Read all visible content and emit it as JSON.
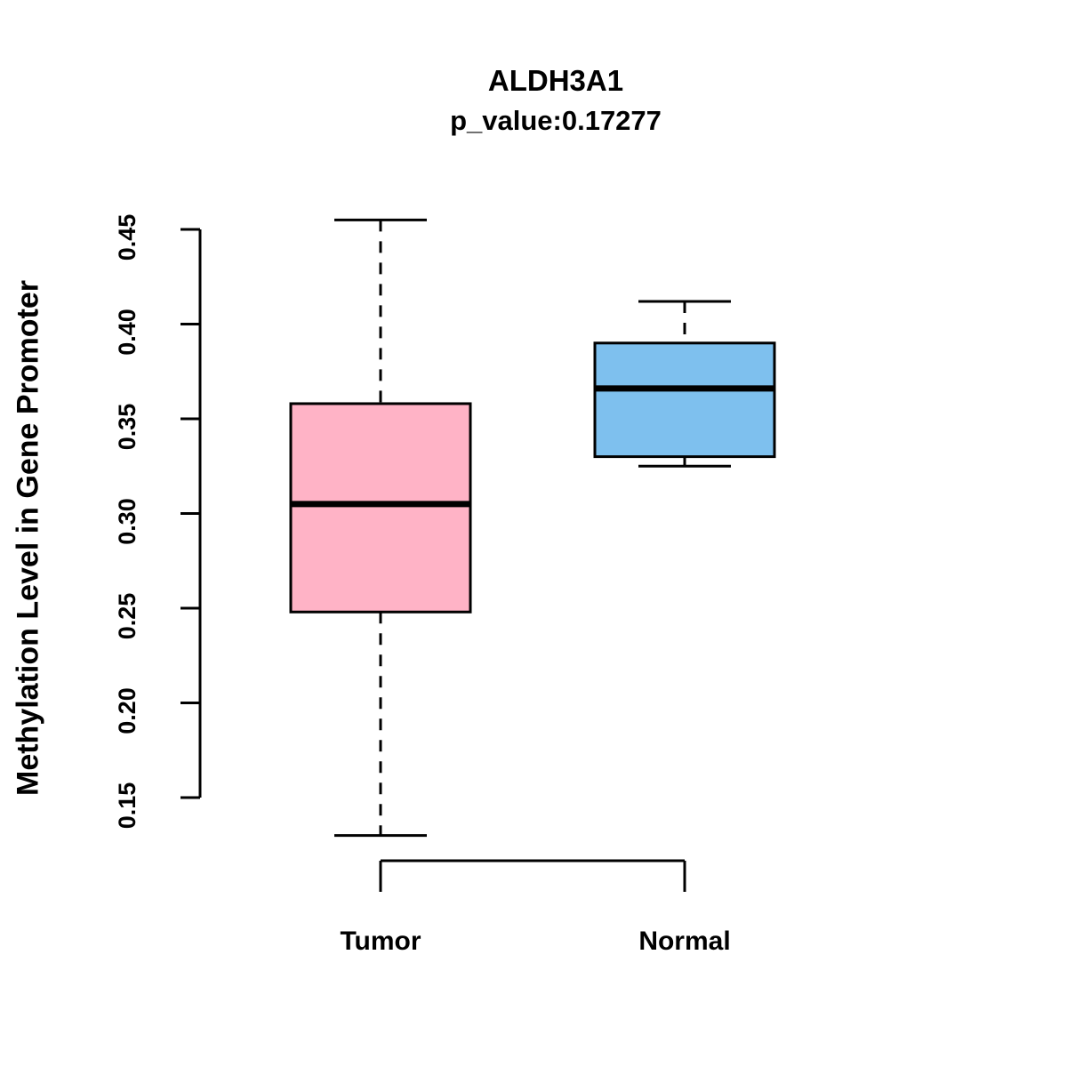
{
  "chart_data": {
    "type": "boxplot",
    "title": "ALDH3A1",
    "subtitle": "p_value:0.17277",
    "ylabel": "Methylation Level in Gene Promoter",
    "xlabel": "",
    "y_ticks": [
      0.15,
      0.2,
      0.25,
      0.3,
      0.35,
      0.4,
      0.45
    ],
    "ylim": [
      0.12,
      0.46
    ],
    "grid": false,
    "legend": "none",
    "groups": [
      {
        "label": "Tumor",
        "box_color": "#FFB3C6",
        "whisker_low": 0.13,
        "q1": 0.248,
        "median": 0.305,
        "q3": 0.358,
        "whisker_high": 0.455
      },
      {
        "label": "Normal",
        "box_color": "#7EC0EE",
        "whisker_low": 0.325,
        "q1": 0.33,
        "median": 0.366,
        "q3": 0.39,
        "whisker_high": 0.412
      }
    ],
    "x_axis_bracket": true,
    "stroke_color": "#000000"
  }
}
